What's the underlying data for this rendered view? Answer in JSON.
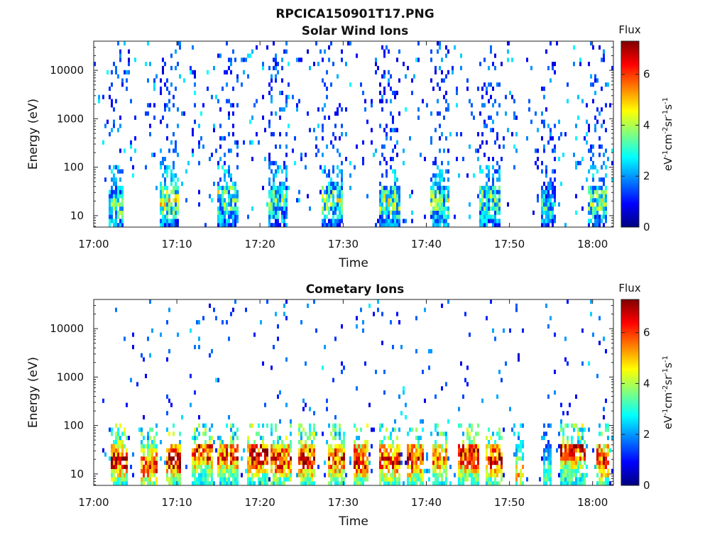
{
  "figure": {
    "title": "RPCICA150901T17.PNG"
  },
  "colormap": [
    "#00007f",
    "#0000ff",
    "#007fff",
    "#00ffff",
    "#7fff7f",
    "#ffff00",
    "#ff7f00",
    "#ff0000",
    "#7f0000"
  ],
  "chart_data": [
    {
      "type": "heatmap",
      "title": "Solar Wind Ions",
      "xlabel": "Time",
      "ylabel": "Energy (eV)",
      "y_scale": "log",
      "ylim": [
        5.8,
        40000
      ],
      "xlim": [
        "17:00",
        "18:02:30"
      ],
      "x_ticks": [
        "17:00",
        "17:10",
        "17:20",
        "17:30",
        "17:40",
        "17:50",
        "18:00"
      ],
      "y_ticks": [
        "10",
        "100",
        "1000",
        "10000"
      ],
      "colorbar": {
        "label_prefix": "Flux",
        "range": [
          0,
          7.3
        ],
        "ticks": [
          "0",
          "2",
          "4",
          "6"
        ]
      },
      "bursts": [
        {
          "t": 2.5,
          "duration": 1.8,
          "peak_flux": 4.2,
          "ion_energy_eV": 15
        },
        {
          "t": 9.0,
          "duration": 2.2,
          "peak_flux": 4.6,
          "ion_energy_eV": 20
        },
        {
          "t": 16.0,
          "duration": 2.5,
          "peak_flux": 4.4,
          "ion_energy_eV": 25
        },
        {
          "t": 22.0,
          "duration": 2.4,
          "peak_flux": 4.0,
          "ion_energy_eV": 20
        },
        {
          "t": 28.5,
          "duration": 2.6,
          "peak_flux": 4.2,
          "ion_energy_eV": 20
        },
        {
          "t": 35.5,
          "duration": 2.6,
          "peak_flux": 4.4,
          "ion_energy_eV": 20
        },
        {
          "t": 41.5,
          "duration": 2.4,
          "peak_flux": 4.2,
          "ion_energy_eV": 20
        },
        {
          "t": 47.5,
          "duration": 2.4,
          "peak_flux": 4.0,
          "ion_energy_eV": 20
        },
        {
          "t": 54.5,
          "duration": 1.8,
          "peak_flux": 3.2,
          "ion_energy_eV": 15
        },
        {
          "t": 60.5,
          "duration": 2.2,
          "peak_flux": 4.2,
          "ion_energy_eV": 20
        }
      ]
    },
    {
      "type": "heatmap",
      "title": "Cometary Ions",
      "xlabel": "Time",
      "ylabel": "Energy (eV)",
      "y_scale": "log",
      "ylim": [
        5.8,
        40000
      ],
      "xlim": [
        "17:00",
        "18:02:30"
      ],
      "x_ticks": [
        "17:00",
        "17:10",
        "17:20",
        "17:30",
        "17:40",
        "17:50",
        "18:00"
      ],
      "y_ticks": [
        "10",
        "100",
        "1000",
        "10000"
      ],
      "colorbar": {
        "label_prefix": "Flux",
        "range": [
          0,
          7.3
        ],
        "ticks": [
          "0",
          "2",
          "4",
          "6"
        ]
      },
      "bursts": [
        {
          "t": 3.0,
          "duration": 2.0,
          "peak_flux": 6.6,
          "ion_energy_eV": 20
        },
        {
          "t": 6.5,
          "duration": 2.0,
          "peak_flux": 6.2,
          "ion_energy_eV": 15
        },
        {
          "t": 9.5,
          "duration": 2.0,
          "peak_flux": 6.8,
          "ion_energy_eV": 20
        },
        {
          "t": 13.0,
          "duration": 2.5,
          "peak_flux": 6.6,
          "ion_energy_eV": 30
        },
        {
          "t": 16.0,
          "duration": 2.5,
          "peak_flux": 6.2,
          "ion_energy_eV": 25
        },
        {
          "t": 19.5,
          "duration": 2.5,
          "peak_flux": 6.8,
          "ion_energy_eV": 25
        },
        {
          "t": 22.5,
          "duration": 2.5,
          "peak_flux": 6.4,
          "ion_energy_eV": 20
        },
        {
          "t": 25.5,
          "duration": 2.0,
          "peak_flux": 6.8,
          "ion_energy_eV": 20
        },
        {
          "t": 29.0,
          "duration": 2.0,
          "peak_flux": 6.2,
          "ion_energy_eV": 20
        },
        {
          "t": 32.0,
          "duration": 2.0,
          "peak_flux": 6.6,
          "ion_energy_eV": 20
        },
        {
          "t": 35.5,
          "duration": 2.5,
          "peak_flux": 6.4,
          "ion_energy_eV": 20
        },
        {
          "t": 38.5,
          "duration": 2.0,
          "peak_flux": 6.6,
          "ion_energy_eV": 20
        },
        {
          "t": 41.5,
          "duration": 2.0,
          "peak_flux": 5.8,
          "ion_energy_eV": 20
        },
        {
          "t": 45.0,
          "duration": 2.5,
          "peak_flux": 6.8,
          "ion_energy_eV": 25
        },
        {
          "t": 48.0,
          "duration": 2.0,
          "peak_flux": 6.4,
          "ion_energy_eV": 20
        },
        {
          "t": 51.0,
          "duration": 1.0,
          "peak_flux": 5.0,
          "ion_energy_eV": 10
        },
        {
          "t": 54.5,
          "duration": 1.0,
          "peak_flux": 3.5,
          "ion_energy_eV": 10
        },
        {
          "t": 57.5,
          "duration": 3.0,
          "peak_flux": 6.8,
          "ion_energy_eV": 35
        },
        {
          "t": 61.0,
          "duration": 1.6,
          "peak_flux": 6.6,
          "ion_energy_eV": 20
        }
      ]
    }
  ]
}
